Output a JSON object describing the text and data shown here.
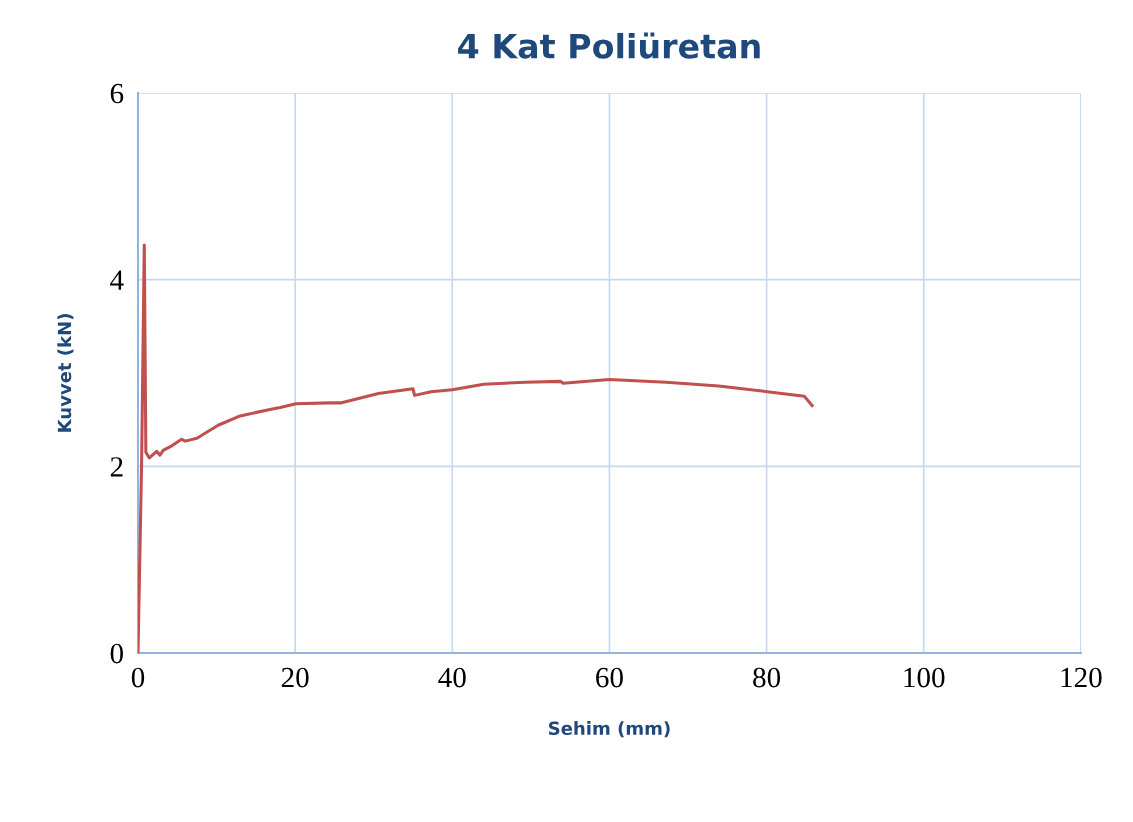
{
  "chart_data": {
    "type": "line",
    "title": "4 Kat Poliüretan",
    "xlabel": "Sehim (mm)",
    "ylabel": "Kuvvet (kN)",
    "xlim": [
      0,
      120
    ],
    "xticks": [
      0,
      20,
      40,
      60,
      80,
      100,
      120
    ],
    "ylim": [
      0,
      6
    ],
    "yticks": [
      0,
      2,
      4,
      6
    ],
    "grid": true,
    "marker": "none",
    "line_style": "solid",
    "series": [
      {
        "color": "#c0504d",
        "x": [
          0,
          0.46,
          0.8,
          1.0,
          1.44,
          2.38,
          2.8,
          3.2,
          4.3,
          5.56,
          6.0,
          7.5,
          10.2,
          13.0,
          16.8,
          18.1,
          20.1,
          24.4,
          25.9,
          30.6,
          35.0,
          35.2,
          37.3,
          40.0,
          44.0,
          49.3,
          53.8,
          54.1,
          60.0,
          67.2,
          73.9,
          80.1,
          84.8,
          85.8
        ],
        "values": [
          0,
          2.04,
          4.37,
          2.15,
          2.09,
          2.16,
          2.12,
          2.17,
          2.22,
          2.29,
          2.27,
          2.3,
          2.44,
          2.54,
          2.61,
          2.63,
          2.67,
          2.68,
          2.68,
          2.78,
          2.83,
          2.76,
          2.8,
          2.82,
          2.88,
          2.9,
          2.91,
          2.89,
          2.93,
          2.9,
          2.86,
          2.8,
          2.75,
          2.65
        ]
      }
    ]
  }
}
